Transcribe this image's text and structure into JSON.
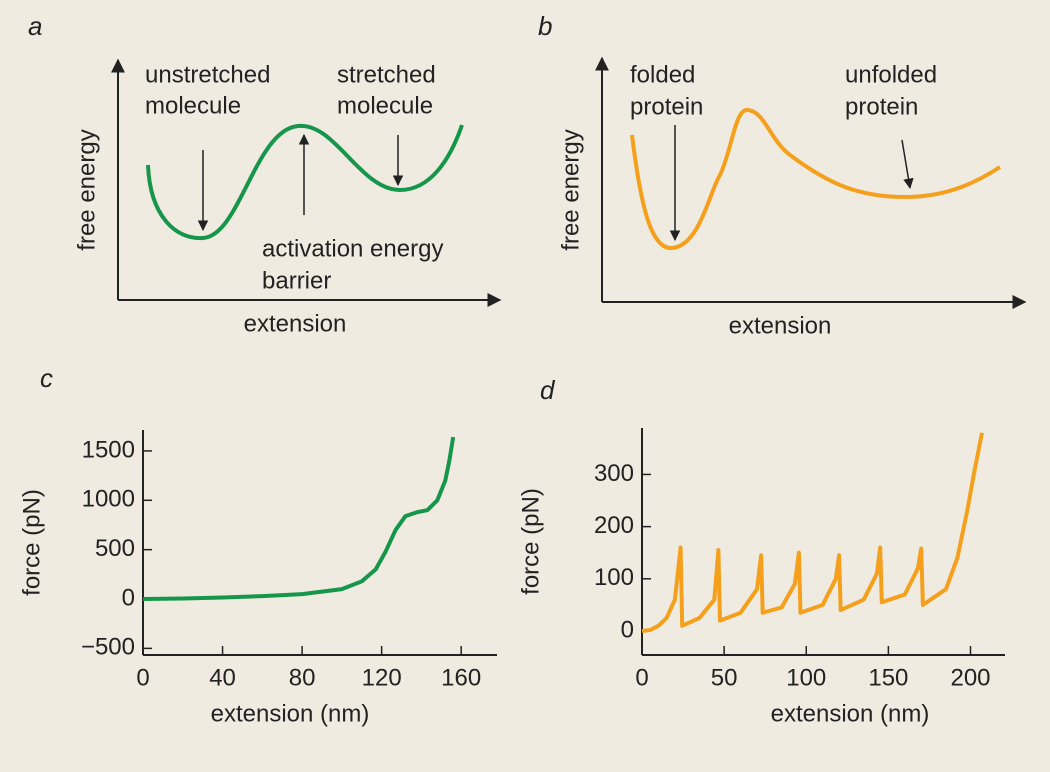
{
  "chart_data": [
    {
      "type": "schematic",
      "panel_label": "a",
      "ylabel": "free energy",
      "xlabel": "extension",
      "color": "#16964a",
      "annotations": [
        [
          "unstretched",
          "molecule"
        ],
        [
          "stretched",
          "molecule"
        ],
        [
          "activation energy",
          "barrier"
        ]
      ]
    },
    {
      "type": "schematic",
      "panel_label": "b",
      "ylabel": "free energy",
      "xlabel": "extension",
      "color": "#f5a01c",
      "annotations": [
        [
          "folded",
          "protein"
        ],
        [
          "unfolded",
          "protein"
        ]
      ]
    },
    {
      "type": "line",
      "panel_label": "c",
      "xlabel": "extension (nm)",
      "ylabel": "force (pN)",
      "x": [
        0,
        20,
        40,
        60,
        80,
        100,
        110,
        117,
        122,
        127,
        132,
        138,
        143,
        148,
        152,
        154,
        156
      ],
      "series": [
        {
          "color": "#16964a",
          "values": [
            0,
            5,
            15,
            30,
            50,
            100,
            180,
            300,
            480,
            700,
            840,
            880,
            900,
            1000,
            1200,
            1400,
            1640
          ]
        }
      ],
      "xlim": [
        0,
        178
      ],
      "xticks": [
        0,
        40,
        80,
        120,
        160
      ],
      "ylim": [
        -567,
        1712
      ],
      "yticks": [
        {
          "value": -500,
          "label": "−500"
        },
        0,
        500,
        1000,
        1500
      ]
    },
    {
      "type": "line",
      "panel_label": "d",
      "xlabel": "extension (nm)",
      "ylabel": "force (pN)",
      "x": [
        0,
        5,
        10,
        15,
        20,
        23.5,
        24.5,
        35,
        44,
        46.5,
        47.5,
        60,
        70,
        72.5,
        73.5,
        85,
        93,
        95.5,
        96.5,
        110,
        118,
        120,
        121,
        135,
        143,
        145,
        146,
        160,
        168,
        170,
        171,
        185,
        192,
        198,
        202,
        207
      ],
      "series": [
        {
          "color": "#f5a01c",
          "values": [
            0,
            2,
            10,
            25,
            60,
            160,
            10,
            25,
            60,
            155,
            20,
            35,
            80,
            145,
            35,
            45,
            90,
            150,
            35,
            50,
            100,
            145,
            40,
            60,
            110,
            160,
            55,
            70,
            120,
            158,
            50,
            80,
            140,
            230,
            300,
            380
          ]
        }
      ],
      "xlim": [
        0,
        221
      ],
      "xticks": [
        0,
        50,
        100,
        150,
        200
      ],
      "ylim": [
        -46,
        389
      ],
      "yticks": [
        0,
        100,
        200,
        300
      ]
    }
  ]
}
